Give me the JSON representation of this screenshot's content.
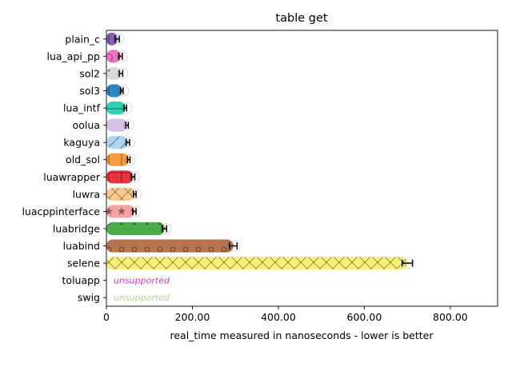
{
  "chart_data": {
    "type": "bar",
    "orientation": "horizontal",
    "title": "table get",
    "xlabel": "real_time measured in nanoseconds - lower is better",
    "ylabel": "",
    "xlim": [
      0,
      910
    ],
    "xticks": [
      0,
      200,
      400,
      600,
      800
    ],
    "xtick_labels": [
      "0",
      "200.00",
      "400.00",
      "600.00",
      "800.00"
    ],
    "grid": false,
    "categories": [
      "plain_c",
      "lua_api_pp",
      "sol2",
      "sol3",
      "lua_intf",
      "oolua",
      "kaguya",
      "old_sol",
      "luawrapper",
      "luwra",
      "luacppinterface",
      "luabridge",
      "luabind",
      "selene",
      "toluapp",
      "swig"
    ],
    "values": [
      25,
      33,
      34,
      36,
      44,
      48,
      50,
      52,
      62,
      66,
      65,
      135,
      295,
      700,
      null,
      null
    ],
    "error": [
      5,
      4,
      4,
      3,
      3,
      3,
      4,
      3,
      4,
      3,
      4,
      5,
      9,
      12,
      null,
      null
    ],
    "colors": [
      "#8a5fb5",
      "#f073c6",
      "#d9d9d9",
      "#2e86c1",
      "#2bd3b2",
      "#d6c2e4",
      "#b0d4ec",
      "#f69c42",
      "#e8343f",
      "#f9c98d",
      "#f6a2a6",
      "#4caa48",
      "#b5744e",
      "#f6f07a",
      "#cc3fbf",
      "#b2dc8c"
    ],
    "hatches": [
      "|",
      "O",
      ".",
      "|",
      "-",
      "",
      "/",
      "|",
      "+",
      "x",
      "*",
      ".",
      "o",
      "x",
      "",
      ""
    ],
    "annotations": [
      {
        "category": "toluapp",
        "text": "unsupported",
        "color": "#cc3fbf"
      },
      {
        "category": "swig",
        "text": "unsupported",
        "color": "#b2dc8c"
      }
    ]
  }
}
